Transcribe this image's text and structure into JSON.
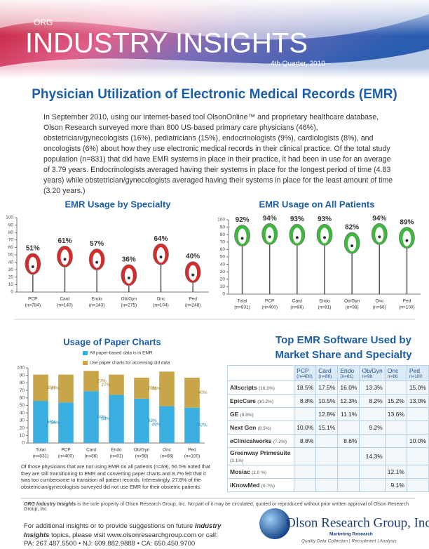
{
  "header": {
    "org": "ORG",
    "title": "INDUSTRY INSIGHTS",
    "date": "4th Quarter, 2010"
  },
  "article": {
    "title": "Physician Utilization of Electronic Medical Records (EMR)",
    "body": "In September 2010, using our internet-based tool OlsonOnline™ and proprietary healthcare database, Olson Research surveyed more than 800 US-based primary care physicians (46%), obstetrician/gynecologists (16%), pediatricians (15%), endocrinologists (9%), cardiologists (8%), and oncologists (6%) about how they use electronic medical records in their clinical practice.  Of the total study population (n=831) that did have EMR systems in place in their practice, it had been in use for an average of 3.79 years.  Endocrinologists averaged having their systems in place for the longest period of time (4.83 years) while obstetrician/gynecologists averaged having their systems in place for the least amount of time (3.20 years.)"
  },
  "chart_data": [
    {
      "type": "bar",
      "title": "EMR Usage by Specialty",
      "categories": [
        "PCP",
        "Card",
        "Endo",
        "Ob/Gyn",
        "Onc",
        "Ped"
      ],
      "n_labels": [
        "(n=784)",
        "(n=140)",
        "(n=143)",
        "(n=275)",
        "(n=104)",
        "(n=248)"
      ],
      "values": [
        51,
        61,
        57,
        36,
        64,
        40
      ],
      "value_labels": [
        "51%",
        "61%",
        "57%",
        "36%",
        "64%",
        "40%"
      ],
      "color": "#d42a2a",
      "ylim": [
        0,
        100
      ],
      "yticks": [
        0,
        10,
        20,
        30,
        40,
        50,
        60,
        70,
        80,
        90,
        100
      ]
    },
    {
      "type": "bar",
      "title": "EMR Usage on All Patients",
      "categories": [
        "Total",
        "PCP",
        "Card",
        "Endo",
        "Ob/Gyn",
        "Onc",
        "Ped"
      ],
      "n_labels": [
        "(n=831)",
        "(n=400)",
        "(n=86)",
        "(n=81)",
        "(n=98)",
        "(n=66)",
        "(n=100)"
      ],
      "values": [
        92,
        94,
        93,
        93,
        82,
        94,
        89
      ],
      "value_labels": [
        "92%",
        "94%",
        "93%",
        "93%",
        "82%",
        "94%",
        "89%"
      ],
      "color": "#3cb83c",
      "ylim": [
        0,
        100
      ],
      "yticks": [
        0,
        10,
        20,
        30,
        40,
        50,
        60,
        70,
        80,
        90,
        100
      ]
    },
    {
      "type": "stacked_bar",
      "title": "Usage of Paper Charts",
      "categories": [
        "Total",
        "PCP",
        "Card",
        "Endo",
        "Ob/Gyn",
        "Onc",
        "Ped"
      ],
      "n_labels": [
        "(n=831)",
        "(n=400)",
        "(n=86)",
        "(n=81)",
        "(n=98)",
        "(n=66)",
        "(n=100)"
      ],
      "series": [
        {
          "name": "All paper-based data is in EMR",
          "color": "#3aaee0",
          "values": [
            56,
            54,
            69,
            64,
            59,
            49,
            47
          ],
          "value_labels": [
            "56%",
            "54%",
            "69%",
            "64%",
            "59%",
            "49%",
            "47%"
          ]
        },
        {
          "name": "Use paper charts for accessing old data",
          "color": "#c9a54a",
          "values": [
            35,
            37,
            27,
            27,
            28,
            46,
            40
          ],
          "value_labels": [
            "35%",
            "37%",
            "27%",
            "27%",
            "28%",
            "46%",
            "40%"
          ]
        }
      ],
      "ylim": [
        0,
        100
      ],
      "yticks": [
        0,
        10,
        20,
        30,
        40,
        50,
        60,
        70,
        80,
        90,
        100
      ]
    }
  ],
  "note": "Of those physicians that are not using EMR on all patients (n=69), 56.5% noted that they are still transitioning to EMR and converting paper charts and 8.7% felt that it was too cumbersome to transition all patient records.  Interestingly, 27.8% of the obstetrician/gynecologists surveyed did not use EMR for their obstetric patients.",
  "table": {
    "title": "Top EMR Software Used by Market Share and Specialty",
    "columns": [
      {
        "name": "PCP",
        "n": "(n=400)"
      },
      {
        "name": "Card",
        "n": "(n=86)"
      },
      {
        "name": "Endo",
        "n": "(n=81)"
      },
      {
        "name": "Ob/Gyn",
        "n": "n=98"
      },
      {
        "name": "Onc",
        "n": "n=66"
      },
      {
        "name": "Ped",
        "n": "n=100"
      }
    ],
    "rows": [
      {
        "name": "Allscripts",
        "share": "(16.0%)",
        "cells": [
          "18.5%",
          "17.5%",
          "16.0%",
          "13.3%",
          null,
          "15.0%"
        ]
      },
      {
        "name": "EpicCare",
        "share": "(10.2%)",
        "cells": [
          "8.8%",
          "10.5%",
          "12.3%",
          "8.2%",
          "15.2%",
          "13.0%"
        ]
      },
      {
        "name": "GE",
        "share": "(8.8%)",
        "cells": [
          null,
          "12.8%",
          "11.1%",
          null,
          "13.6%",
          null
        ]
      },
      {
        "name": "Next Gen",
        "share": "(8.5%)",
        "cells": [
          "10.0%",
          "15.1%",
          null,
          "9.2%",
          null,
          null
        ]
      },
      {
        "name": "eClinicalworks",
        "share": "(7.2%)",
        "cells": [
          "8.8%",
          null,
          "8.6%",
          null,
          null,
          "10.0%"
        ]
      },
      {
        "name": "Greenway Primesuite",
        "share": "(3.1%)",
        "cells": [
          null,
          null,
          null,
          "14.3%",
          null,
          null
        ]
      },
      {
        "name": "Mosiac",
        "share": "(1.0 %)",
        "cells": [
          null,
          null,
          null,
          null,
          "12.1%",
          null
        ]
      },
      {
        "name": "iKnowMed",
        "share": "(0.7%)",
        "cells": [
          null,
          null,
          null,
          null,
          "9.1%",
          null
        ]
      }
    ]
  },
  "footer": {
    "disclaimer_brand": "ORG Industry Insights",
    "disclaimer": "is the sole property of Olson Research Group, Inc. No part of it may be circulated, quoted or reproduced without prior written approval of Olson Research Group, Inc.",
    "contact_intro": "For additional insights or to provide suggestions on future",
    "contact_brand": "Industry Insights",
    "contact_rest": "topics, please visit www.olsonresearchgroup.com or call:",
    "phones": "PA: 267.487.5500  •  NJ: 609.882.9888  •  CA: 650.450.9700",
    "logo": {
      "name": "Olson Research Group, Inc.",
      "tagline": "Marketing Research",
      "services": "Quality Data Collection | Recruitment | Analysis"
    }
  }
}
